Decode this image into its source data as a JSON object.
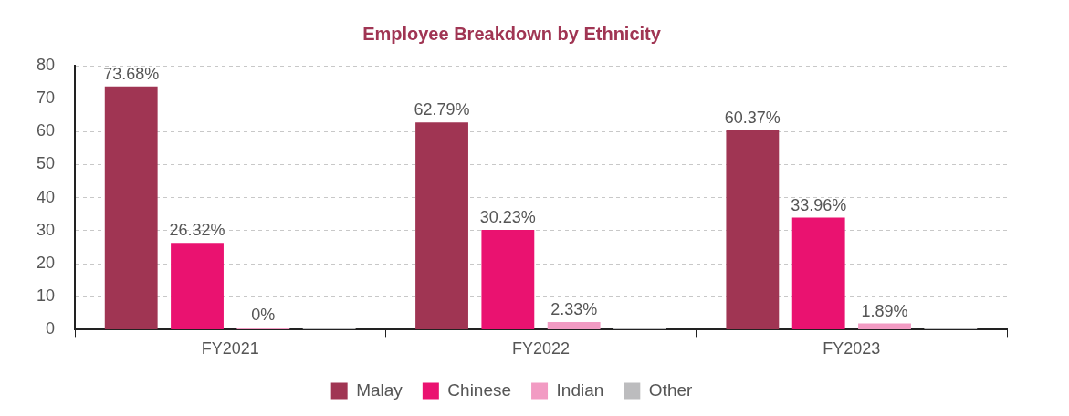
{
  "chart_data": {
    "type": "bar",
    "title": "Employee Breakdown by Ethnicity",
    "categories": [
      "FY2021",
      "FY2022",
      "FY2023"
    ],
    "series": [
      {
        "name": "Malay",
        "color": "#a03553",
        "values": [
          73.68,
          62.79,
          60.37
        ],
        "value_labels": [
          "73.68%",
          "62.79%",
          "60.37%"
        ]
      },
      {
        "name": "Chinese",
        "color": "#ea1270",
        "values": [
          26.32,
          30.23,
          33.96
        ],
        "value_labels": [
          "26.32%",
          "30.23%",
          "33.96%"
        ]
      },
      {
        "name": "Indian",
        "color": "#f29bc3",
        "values": [
          0,
          2.33,
          1.89
        ],
        "value_labels": [
          "0%",
          "2.33%",
          "1.89%"
        ]
      },
      {
        "name": "Other",
        "color": "#bcbcbe",
        "values": [
          0,
          0,
          0
        ],
        "value_labels": [
          null,
          null,
          null
        ]
      }
    ],
    "ylim": [
      0,
      80
    ],
    "yticks": [
      0,
      10,
      20,
      30,
      40,
      50,
      60,
      70,
      80
    ],
    "grid": "y",
    "legend": "bottom"
  }
}
